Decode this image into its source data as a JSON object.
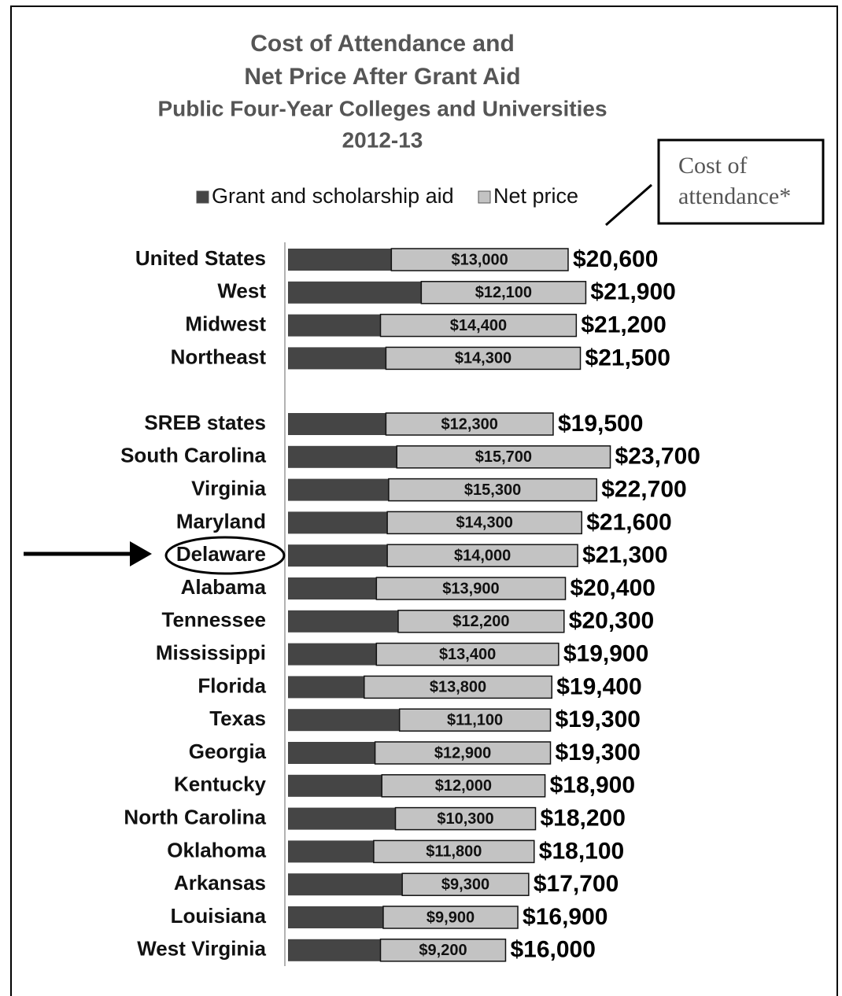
{
  "chart_data": {
    "type": "stacked-bar",
    "title": [
      "Cost of Attendance and",
      "Net Price After Grant Aid"
    ],
    "subtitle": [
      "Public Four-Year Colleges and Universities",
      "2012-13"
    ],
    "annotation": [
      "Cost of",
      "attendance*"
    ],
    "categories": [
      "United States",
      "West",
      "Midwest",
      "Northeast",
      null,
      "SREB states",
      "South Carolina",
      "Virginia",
      "Maryland",
      "Delaware",
      "Alabama",
      "Tennessee",
      "Mississippi",
      "Florida",
      "Texas",
      "Georgia",
      "Kentucky",
      "North Carolina",
      "Oklahoma",
      "Arkansas",
      "Louisiana",
      "West Virginia"
    ],
    "series": [
      {
        "name": "Grant and scholarship aid",
        "color": "#454545",
        "values": [
          7600,
          9800,
          6800,
          7200,
          null,
          7200,
          8000,
          7400,
          7300,
          7300,
          6500,
          8100,
          6500,
          5600,
          8200,
          6400,
          6900,
          7900,
          6300,
          8400,
          7000,
          6800
        ]
      },
      {
        "name": "Net price",
        "color": "#c3c3c3",
        "values": [
          13000,
          12100,
          14400,
          14300,
          null,
          12300,
          15700,
          15300,
          14300,
          14000,
          13900,
          12200,
          13400,
          13800,
          11100,
          12900,
          12000,
          10300,
          11800,
          9300,
          9900,
          9200
        ],
        "value_labels": [
          "$13,000",
          "$12,100",
          "$14,400",
          "$14,300",
          null,
          "$12,300",
          "$15,700",
          "$15,300",
          "$14,300",
          "$14,000",
          "$13,900",
          "$12,200",
          "$13,400",
          "$13,800",
          "$11,100",
          "$12,900",
          "$12,000",
          "$10,300",
          "$11,800",
          "$9,300",
          "$9,900",
          "$9,200"
        ]
      }
    ],
    "totals": [
      20600,
      21900,
      21200,
      21500,
      null,
      19500,
      23700,
      22700,
      21600,
      21300,
      20400,
      20300,
      19900,
      19400,
      19300,
      19300,
      18900,
      18200,
      18100,
      17700,
      16900,
      16000
    ],
    "total_labels": [
      "$20,600",
      "$21,900",
      "$21,200",
      "$21,500",
      null,
      "$19,500",
      "$23,700",
      "$22,700",
      "$21,600",
      "$21,300",
      "$20,400",
      "$20,300",
      "$19,900",
      "$19,400",
      "$19,300",
      "$19,300",
      "$18,900",
      "$18,200",
      "$18,100",
      "$17,700",
      "$16,900",
      "$16,000"
    ],
    "xlim": [
      0,
      25000
    ]
  }
}
